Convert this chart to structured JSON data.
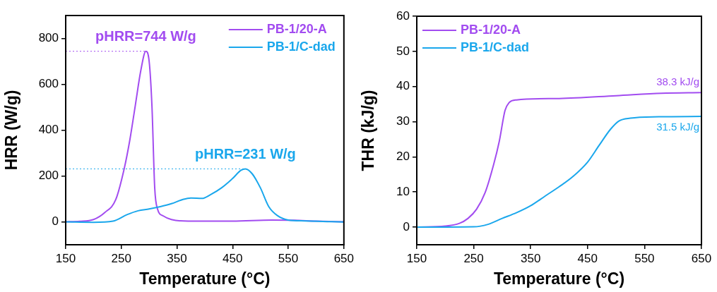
{
  "chart_data": [
    {
      "type": "line",
      "xlabel": "Temperature (°C)",
      "ylabel": "HRR (W/g)",
      "xlim": [
        150,
        650
      ],
      "xticks": [
        150,
        250,
        350,
        450,
        550,
        650
      ],
      "ylim": [
        -100,
        900
      ],
      "yticks": [
        0,
        200,
        400,
        600,
        800
      ],
      "legend": "top right",
      "marker": "none",
      "line_style": "solid",
      "series": [
        {
          "name": "PB-1/20-A",
          "color": "#a24cf0",
          "x": [
            150,
            175,
            200,
            220,
            240,
            255,
            265,
            275,
            285,
            294,
            300,
            305,
            310,
            315,
            325,
            340,
            370,
            450,
            520,
            560,
            600,
            650
          ],
          "values": [
            0,
            2,
            10,
            40,
            97,
            230,
            353,
            506,
            660,
            744,
            700,
            506,
            148,
            56,
            26,
            10,
            3,
            3,
            8,
            7,
            3,
            0
          ]
        },
        {
          "name": "PB-1/C-dad",
          "color": "#1aa7ec",
          "x": [
            150,
            200,
            235,
            260,
            280,
            300,
            320,
            340,
            360,
            375,
            395,
            410,
            430,
            450,
            465,
            473,
            485,
            500,
            515,
            530,
            550,
            580,
            620,
            650
          ],
          "values": [
            0,
            -2,
            3,
            31,
            48,
            56,
            66,
            79,
            97,
            104,
            102,
            118,
            148,
            189,
            225,
            231,
            210,
            148,
            66,
            28,
            8,
            4,
            1,
            -1
          ]
        }
      ],
      "ref_lines": [
        {
          "axis": "y",
          "value": 744,
          "label": "pHRR=744 W/g",
          "color": "#a24cf0",
          "line_style": "dotted"
        },
        {
          "axis": "y",
          "value": 231,
          "label": "pHRR=231 W/g",
          "color": "#1aa7ec",
          "line_style": "dotted"
        }
      ]
    },
    {
      "type": "line",
      "xlabel": "Temperature (°C)",
      "ylabel": "THR (kJ/g)",
      "xlim": [
        150,
        650
      ],
      "xticks": [
        150,
        250,
        350,
        450,
        550,
        650
      ],
      "ylim": [
        -5,
        60
      ],
      "yticks": [
        0,
        10,
        20,
        30,
        40,
        50,
        60
      ],
      "legend": "top left",
      "marker": "none",
      "line_style": "solid",
      "series": [
        {
          "name": "PB-1/20-A",
          "color": "#a24cf0",
          "x": [
            150,
            200,
            225,
            240,
            255,
            270,
            285,
            295,
            305,
            312,
            325,
            400,
            500,
            580,
            650
          ],
          "values": [
            0,
            0.3,
            1.1,
            2.5,
            5.1,
            9.8,
            17.8,
            24.5,
            33.2,
            35.4,
            36.2,
            36.6,
            37.4,
            38.1,
            38.3
          ]
        },
        {
          "name": "PB-1/C-dad",
          "color": "#1aa7ec",
          "x": [
            150,
            250,
            275,
            300,
            325,
            350,
            375,
            400,
            425,
            450,
            470,
            490,
            505,
            525,
            575,
            650
          ],
          "values": [
            0,
            0.1,
            0.8,
            2.5,
            4.1,
            6.1,
            8.8,
            11.5,
            14.5,
            18.5,
            23.2,
            27.8,
            30.2,
            31,
            31.4,
            31.5
          ]
        }
      ],
      "annotations": [
        {
          "text": "38.3 kJ/g",
          "x": 650,
          "y": 38.3
        },
        {
          "text": "31.5 kJ/g",
          "x": 650,
          "y": 31.5
        }
      ]
    }
  ]
}
